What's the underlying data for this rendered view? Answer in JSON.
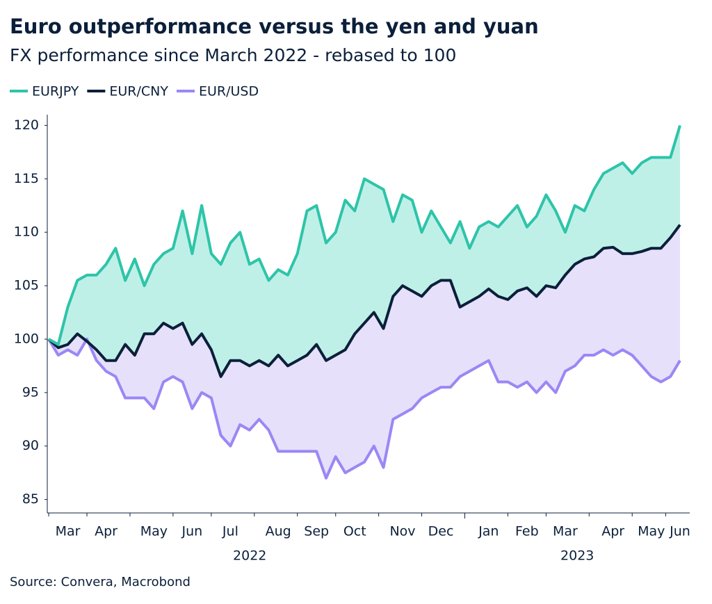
{
  "chart_data": {
    "type": "line",
    "title": "Euro outperformance versus the yen and yuan",
    "subtitle": "FX performance since March 2022 - rebased to 100",
    "source": "Source: Convera, Macrobond",
    "categories": [
      null,
      null,
      "Mar",
      null,
      null,
      null,
      "Apr",
      null,
      null,
      null,
      null,
      "May",
      null,
      null,
      null,
      "Jun",
      null,
      null,
      null,
      "Jul",
      null,
      null,
      null,
      null,
      "Aug",
      null,
      null,
      null,
      "Sep",
      null,
      null,
      null,
      "Oct",
      null,
      null,
      null,
      null,
      "Nov",
      null,
      null,
      null,
      "Dec",
      null,
      null,
      null,
      null,
      "Jan",
      null,
      null,
      null,
      "Feb",
      null,
      null,
      null,
      "Mar",
      null,
      null,
      null,
      null,
      "Apr",
      null,
      null,
      null,
      "May",
      null,
      null,
      "Jun"
    ],
    "years": [
      "2022",
      "2023"
    ],
    "ylim": [
      84,
      121
    ],
    "yticks": [
      85,
      90,
      95,
      100,
      105,
      110,
      115,
      120
    ],
    "legend": "top-left",
    "series": [
      {
        "name": "EURJPY",
        "color": "#2ec4a9",
        "fill_color": "#bff0e7",
        "values": [
          100,
          99.5,
          103,
          105.5,
          106,
          106,
          107,
          108.5,
          105.5,
          107.5,
          105,
          107,
          108,
          108.5,
          112,
          108,
          112.5,
          108,
          107,
          109,
          110,
          107,
          107.5,
          105.5,
          106.5,
          106,
          108,
          112,
          112.5,
          109,
          110,
          113,
          112,
          115,
          114.5,
          114,
          111,
          113.5,
          113,
          110,
          112,
          110.5,
          109,
          111,
          108.5,
          110.5,
          111,
          110.5,
          111.5,
          112.5,
          110.5,
          111.5,
          113.5,
          112,
          110,
          112.5,
          112,
          114,
          115.5,
          116,
          116.5,
          115.5,
          116.5,
          117,
          117,
          117,
          120
        ]
      },
      {
        "name": "EUR/CNY",
        "color": "#0b1f3a",
        "fill_color": "#e6e0fa",
        "values": [
          100,
          99.2,
          99.5,
          100.5,
          99.8,
          99,
          98,
          98,
          99.5,
          98.5,
          100.5,
          100.5,
          101.5,
          101,
          101.5,
          99.5,
          100.5,
          99,
          96.5,
          98,
          98,
          97.5,
          98,
          97.5,
          98.5,
          97.5,
          98,
          98.5,
          99.5,
          98,
          98.5,
          99,
          100.5,
          101.5,
          102.5,
          101,
          104,
          105,
          104.5,
          104,
          105,
          105.5,
          105.5,
          103,
          103.5,
          104,
          104.7,
          104,
          103.7,
          104.5,
          104.8,
          104,
          105,
          104.8,
          106,
          107,
          107.5,
          107.7,
          108.5,
          108.6,
          108,
          108,
          108.2,
          108.5,
          108.5,
          109.5,
          110.7
        ]
      },
      {
        "name": "EUR/USD",
        "color": "#9b87f5",
        "values": [
          100,
          98.5,
          99,
          98.5,
          100,
          98,
          97,
          96.5,
          94.5,
          94.5,
          94.5,
          93.5,
          96,
          96.5,
          96,
          93.5,
          95,
          94.5,
          91,
          90,
          92,
          91.5,
          92.5,
          91.5,
          89.5,
          89.5,
          89.5,
          89.5,
          89.5,
          87,
          89,
          87.5,
          88,
          88.5,
          90,
          88,
          92.5,
          93,
          93.5,
          94.5,
          95,
          95.5,
          95.5,
          96.5,
          97,
          97.5,
          98,
          96,
          96,
          95.5,
          96,
          95,
          96,
          95,
          97,
          97.5,
          98.5,
          98.5,
          99,
          98.5,
          99,
          98.5,
          97.5,
          96.5,
          96,
          96.5,
          98
        ]
      }
    ]
  }
}
